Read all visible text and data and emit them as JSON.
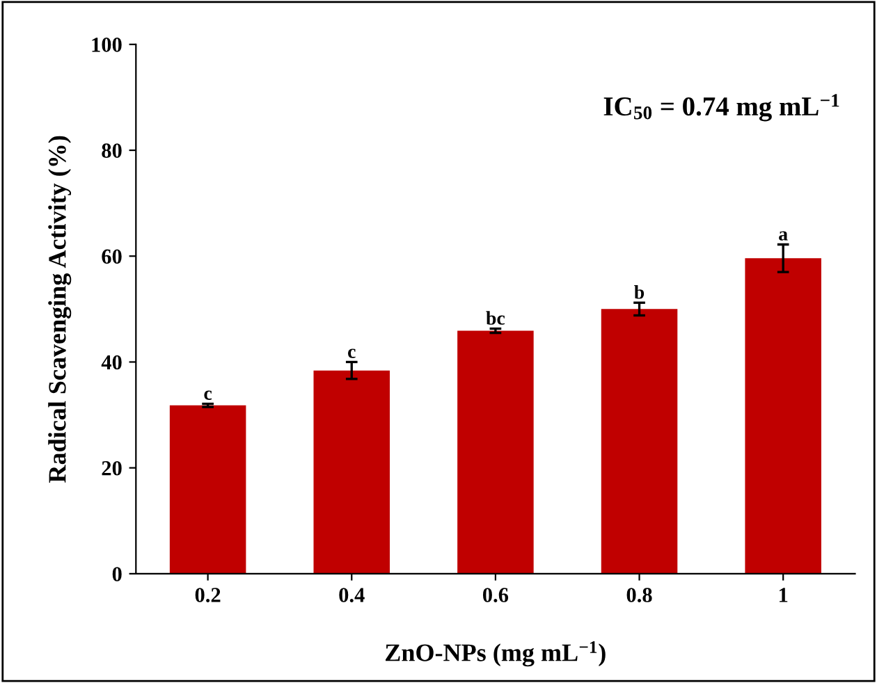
{
  "chart_data": {
    "type": "bar",
    "xlabel": "ZnO-NPs (mg mL$^{−1}$)",
    "ylabel": "Radical Scavenging Activity (%)",
    "categories": [
      "0.2",
      "0.4",
      "0.6",
      "0.8",
      "1"
    ],
    "values": [
      31.8,
      38.4,
      45.9,
      50.0,
      59.6
    ],
    "errors": [
      0.3,
      1.6,
      0.4,
      1.2,
      2.6
    ],
    "color": "#c00000",
    "ylim": [
      0,
      100
    ],
    "yticks": [
      0,
      20,
      40,
      60,
      80,
      100
    ],
    "grid": false,
    "annotations": [
      "IC$_{50}$ = 0.74 mg mL$^{−1}$",
      {
        "text": "c",
        "x": "0.2",
        "y": 32.1
      },
      {
        "text": "c",
        "x": "0.4",
        "y": 40.0
      },
      {
        "text": "bc",
        "x": "0.6",
        "y": 46.3
      },
      {
        "text": "b",
        "x": "0.8",
        "y": 51.2
      },
      {
        "text": "a",
        "x": "1",
        "y": 62.2
      }
    ]
  }
}
